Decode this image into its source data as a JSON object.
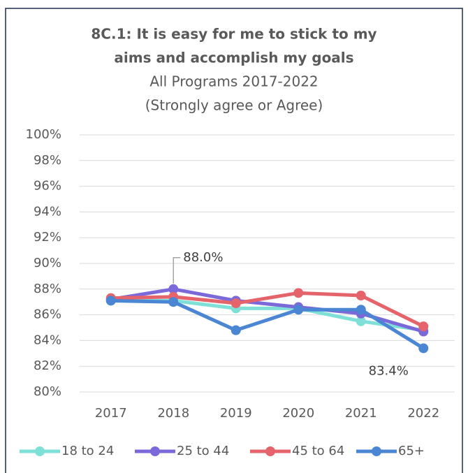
{
  "chart_data": {
    "type": "line",
    "title": "8C.1: It is easy for me to stick to my aims and accomplish my goals",
    "title_lines": [
      "8C.1: It is easy for me to stick to my",
      "aims and accomplish my goals"
    ],
    "subtitle_lines": [
      "All Programs 2017-2022",
      "(Strongly agree or Agree)"
    ],
    "categories": [
      "2017",
      "2018",
      "2019",
      "2020",
      "2021",
      "2022"
    ],
    "series": [
      {
        "name": "18 to 24",
        "color": "#7fe0d8",
        "values": [
          87.1,
          87.1,
          86.5,
          86.5,
          85.5,
          84.8
        ]
      },
      {
        "name": "25 to 44",
        "color": "#7b68d9",
        "values": [
          87.2,
          88.0,
          87.1,
          86.6,
          86.1,
          84.7
        ],
        "value_labels": [
          null,
          "88.0%",
          null,
          null,
          null,
          null
        ]
      },
      {
        "name": "45 to 64",
        "color": "#e5646c",
        "values": [
          87.3,
          87.4,
          86.9,
          87.7,
          87.5,
          85.1
        ]
      },
      {
        "name": "65+",
        "color": "#4a86d4",
        "values": [
          87.1,
          87.0,
          84.8,
          86.4,
          86.4,
          83.4
        ],
        "value_labels": [
          null,
          null,
          null,
          null,
          null,
          "83.4%"
        ]
      }
    ],
    "ylim": [
      80,
      100
    ],
    "yticks": [
      {
        "value": 80,
        "label": "80%"
      },
      {
        "value": 82,
        "label": "82%"
      },
      {
        "value": 84,
        "label": "84%"
      },
      {
        "value": 86,
        "label": "86%"
      },
      {
        "value": 88,
        "label": "88%"
      },
      {
        "value": 90,
        "label": "90%"
      },
      {
        "value": 92,
        "label": "92%"
      },
      {
        "value": 94,
        "label": "94%"
      },
      {
        "value": 96,
        "label": "96%"
      },
      {
        "value": 98,
        "label": "98%"
      },
      {
        "value": 100,
        "label": "100%"
      }
    ],
    "grid": true,
    "legend": "bottom"
  }
}
